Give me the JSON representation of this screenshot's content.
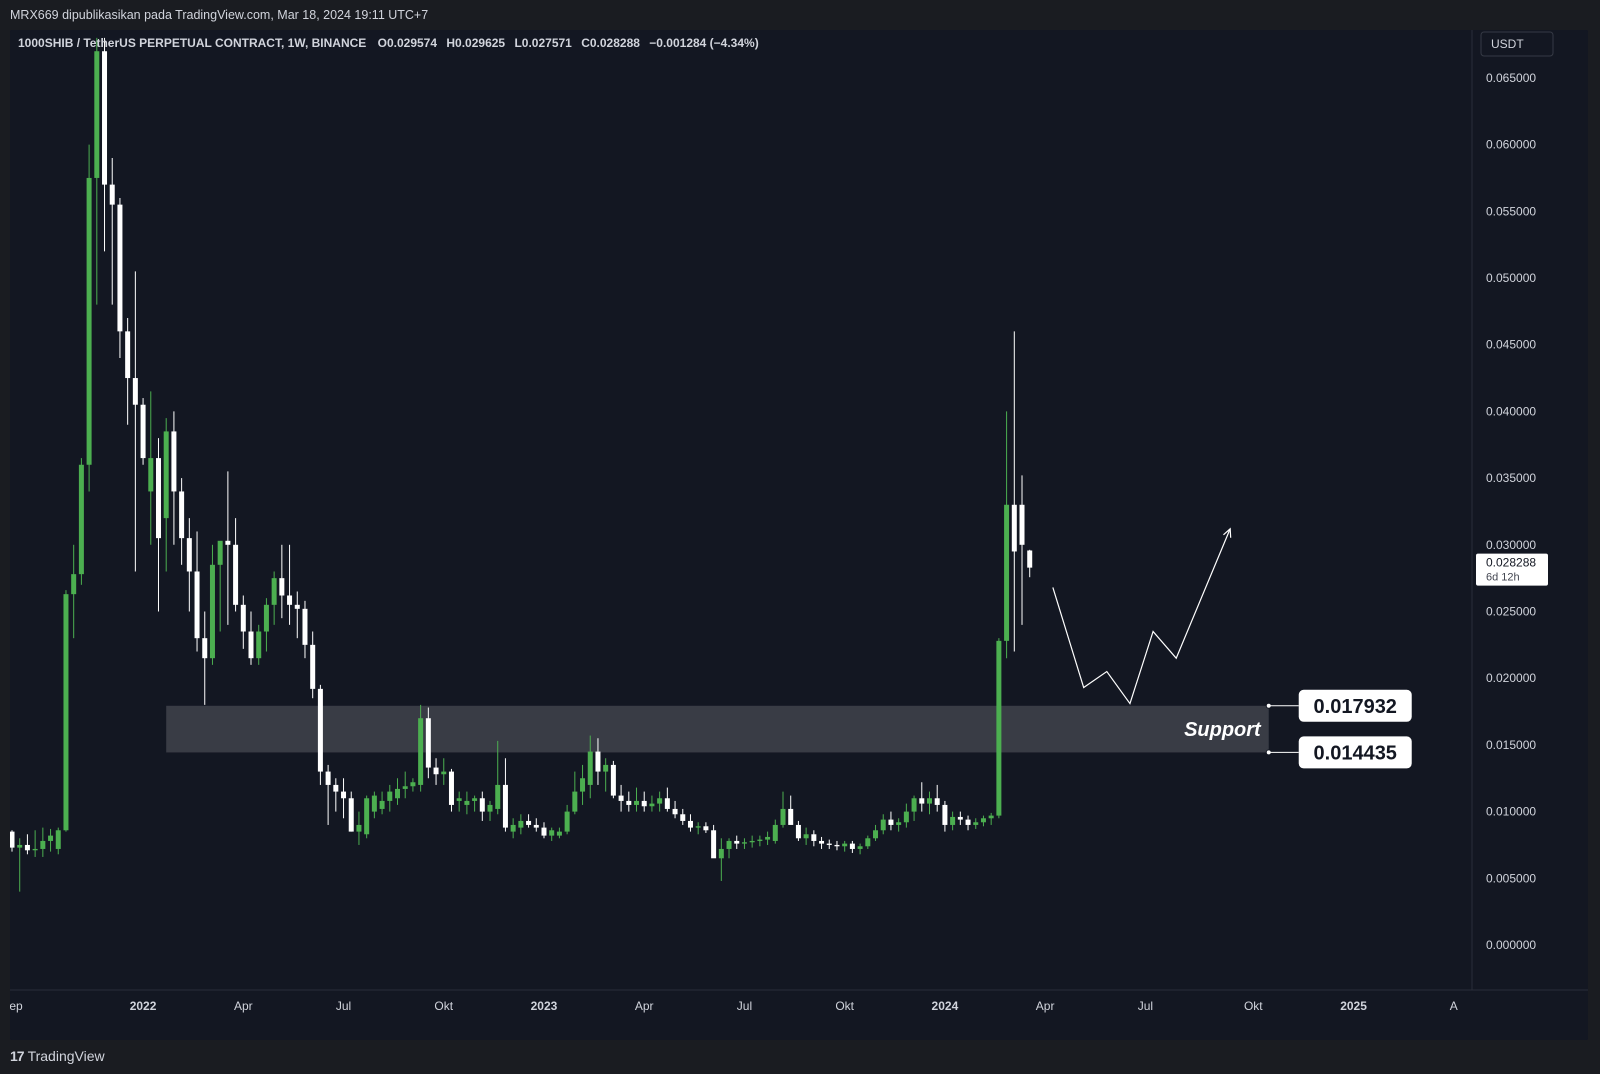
{
  "header": {
    "publish_note": "MRX669 dipublikasikan pada TradingView.com, Mar 18, 2024 19:11 UTC+7"
  },
  "footer": {
    "brand": "TradingView",
    "logo_glyph": "17"
  },
  "colors": {
    "background": "#131722",
    "up_candle": "#4caf50",
    "down_candle": "#ffffff",
    "support_zone": "#3b3e48",
    "text": "#d1d4dc"
  },
  "chart_data": {
    "type": "candlestick",
    "legend": {
      "symbol": "1000SHIB / TetherUS PERPETUAL CONTRACT, 1W, BINANCE",
      "o_label": "O",
      "o_value": "0.029574",
      "h_label": "H",
      "h_value": "0.029625",
      "l_label": "L",
      "l_value": "0.027571",
      "c_label": "C",
      "c_value": "0.028288",
      "change": "−0.001284 (−4.34%)"
    },
    "currency": "USDT",
    "y_ticks": [
      "0.065000",
      "0.060000",
      "0.055000",
      "0.050000",
      "0.045000",
      "0.040000",
      "0.035000",
      "0.030000",
      "0.025000",
      "0.020000",
      "0.015000",
      "0.010000",
      "0.005000",
      "0.000000"
    ],
    "ylim": [
      0.0,
      0.065
    ],
    "x_ticks": [
      {
        "label": "Sep",
        "bold": false,
        "week": 0
      },
      {
        "label": "2022",
        "bold": true,
        "week": 17
      },
      {
        "label": "Apr",
        "bold": false,
        "week": 30
      },
      {
        "label": "Jul",
        "bold": false,
        "week": 43
      },
      {
        "label": "Okt",
        "bold": false,
        "week": 56
      },
      {
        "label": "2023",
        "bold": true,
        "week": 69
      },
      {
        "label": "Apr",
        "bold": false,
        "week": 82
      },
      {
        "label": "Jul",
        "bold": false,
        "week": 95
      },
      {
        "label": "Okt",
        "bold": false,
        "week": 108
      },
      {
        "label": "2024",
        "bold": true,
        "week": 121
      },
      {
        "label": "Apr",
        "bold": false,
        "week": 134
      },
      {
        "label": "Jul",
        "bold": false,
        "week": 147
      },
      {
        "label": "Okt",
        "bold": false,
        "week": 161
      },
      {
        "label": "2025",
        "bold": true,
        "week": 174
      },
      {
        "label": "A",
        "bold": false,
        "week": 187
      }
    ],
    "current_price": {
      "value": "0.028288",
      "countdown": "6d 12h",
      "level": 0.028288
    },
    "support": {
      "label": "Support",
      "upper": 0.017932,
      "lower": 0.014435,
      "upper_label": "0.017932",
      "lower_label": "0.014435",
      "start_week": 20,
      "end_week": 163
    },
    "projection": [
      {
        "week": 135,
        "price": 0.0268
      },
      {
        "week": 139,
        "price": 0.0193
      },
      {
        "week": 142,
        "price": 0.0205
      },
      {
        "week": 145,
        "price": 0.0181
      },
      {
        "week": 148,
        "price": 0.0235
      },
      {
        "week": 151,
        "price": 0.0215
      },
      {
        "week": 158,
        "price": 0.0312
      }
    ],
    "candles": [
      [
        0.0085,
        0.0086,
        0.007,
        0.0073
      ],
      [
        0.0073,
        0.008,
        0.004,
        0.0075
      ],
      [
        0.0075,
        0.0083,
        0.0068,
        0.0071
      ],
      [
        0.0071,
        0.0086,
        0.0066,
        0.0072
      ],
      [
        0.0072,
        0.0088,
        0.0066,
        0.0078
      ],
      [
        0.0078,
        0.0087,
        0.007,
        0.0082
      ],
      [
        0.0072,
        0.0088,
        0.0068,
        0.0086
      ],
      [
        0.0086,
        0.0266,
        0.0085,
        0.0263
      ],
      [
        0.0263,
        0.03,
        0.023,
        0.0278
      ],
      [
        0.0278,
        0.0365,
        0.027,
        0.036
      ],
      [
        0.036,
        0.06,
        0.034,
        0.0575
      ],
      [
        0.0575,
        0.068,
        0.048,
        0.067
      ],
      [
        0.067,
        0.068,
        0.052,
        0.057
      ],
      [
        0.057,
        0.059,
        0.048,
        0.0555
      ],
      [
        0.0555,
        0.056,
        0.044,
        0.046
      ],
      [
        0.046,
        0.047,
        0.039,
        0.0425
      ],
      [
        0.0425,
        0.0505,
        0.028,
        0.0405
      ],
      [
        0.0405,
        0.041,
        0.036,
        0.0365
      ],
      [
        0.034,
        0.0415,
        0.03,
        0.0365
      ],
      [
        0.0365,
        0.038,
        0.025,
        0.0305
      ],
      [
        0.032,
        0.0395,
        0.028,
        0.0385
      ],
      [
        0.0385,
        0.04,
        0.03,
        0.034
      ],
      [
        0.034,
        0.035,
        0.0285,
        0.0305
      ],
      [
        0.0305,
        0.032,
        0.025,
        0.028
      ],
      [
        0.028,
        0.031,
        0.022,
        0.023
      ],
      [
        0.023,
        0.025,
        0.018,
        0.0215
      ],
      [
        0.0215,
        0.03,
        0.021,
        0.0285
      ],
      [
        0.0285,
        0.03,
        0.0235,
        0.0303
      ],
      [
        0.0303,
        0.0355,
        0.024,
        0.03
      ],
      [
        0.03,
        0.032,
        0.025,
        0.0255
      ],
      [
        0.0255,
        0.0262,
        0.0222,
        0.0235
      ],
      [
        0.0235,
        0.025,
        0.021,
        0.0215
      ],
      [
        0.0215,
        0.024,
        0.021,
        0.0235
      ],
      [
        0.0235,
        0.026,
        0.022,
        0.0255
      ],
      [
        0.0255,
        0.028,
        0.024,
        0.0275
      ],
      [
        0.0275,
        0.03,
        0.0245,
        0.0262
      ],
      [
        0.0262,
        0.03,
        0.024,
        0.0255
      ],
      [
        0.0255,
        0.0265,
        0.023,
        0.0252
      ],
      [
        0.0252,
        0.0258,
        0.0215,
        0.0225
      ],
      [
        0.0225,
        0.0235,
        0.0185,
        0.0192
      ],
      [
        0.0192,
        0.0195,
        0.012,
        0.013
      ],
      [
        0.013,
        0.0135,
        0.009,
        0.012
      ],
      [
        0.012,
        0.0125,
        0.01,
        0.0115
      ],
      [
        0.0115,
        0.0125,
        0.0095,
        0.011
      ],
      [
        0.011,
        0.0115,
        0.0085,
        0.0085
      ],
      [
        0.0085,
        0.01,
        0.0075,
        0.009
      ],
      [
        0.0083,
        0.0112,
        0.008,
        0.011
      ],
      [
        0.01,
        0.0115,
        0.0095,
        0.0112
      ],
      [
        0.0102,
        0.0115,
        0.0098,
        0.0108
      ],
      [
        0.0108,
        0.012,
        0.01,
        0.0115
      ],
      [
        0.011,
        0.0125,
        0.0105,
        0.0117
      ],
      [
        0.0117,
        0.013,
        0.011,
        0.0119
      ],
      [
        0.0119,
        0.0125,
        0.0115,
        0.0122
      ],
      [
        0.012,
        0.018,
        0.0115,
        0.017
      ],
      [
        0.017,
        0.0178,
        0.0125,
        0.0133
      ],
      [
        0.0133,
        0.014,
        0.012,
        0.0128
      ],
      [
        0.0128,
        0.014,
        0.012,
        0.013
      ],
      [
        0.013,
        0.0132,
        0.01,
        0.0105
      ],
      [
        0.0108,
        0.0115,
        0.01,
        0.011
      ],
      [
        0.0105,
        0.0115,
        0.0098,
        0.0108
      ],
      [
        0.0108,
        0.0112,
        0.01,
        0.011
      ],
      [
        0.011,
        0.0115,
        0.0093,
        0.01
      ],
      [
        0.01,
        0.0108,
        0.0093,
        0.0105
      ],
      [
        0.0102,
        0.0153,
        0.0098,
        0.012
      ],
      [
        0.012,
        0.014,
        0.0085,
        0.0088
      ],
      [
        0.0085,
        0.0095,
        0.008,
        0.009
      ],
      [
        0.0088,
        0.0098,
        0.0083,
        0.0093
      ],
      [
        0.0093,
        0.0098,
        0.0088,
        0.009
      ],
      [
        0.009,
        0.0095,
        0.0085,
        0.0088
      ],
      [
        0.0088,
        0.0092,
        0.008,
        0.0082
      ],
      [
        0.0082,
        0.0088,
        0.0078,
        0.0086
      ],
      [
        0.0082,
        0.0088,
        0.008,
        0.0085
      ],
      [
        0.0085,
        0.0105,
        0.0083,
        0.01
      ],
      [
        0.01,
        0.013,
        0.0098,
        0.0115
      ],
      [
        0.0115,
        0.0135,
        0.0105,
        0.0125
      ],
      [
        0.012,
        0.0157,
        0.011,
        0.0145
      ],
      [
        0.0145,
        0.0155,
        0.012,
        0.013
      ],
      [
        0.013,
        0.014,
        0.0115,
        0.0135
      ],
      [
        0.0135,
        0.0138,
        0.011,
        0.0112
      ],
      [
        0.0112,
        0.012,
        0.01,
        0.0108
      ],
      [
        0.0108,
        0.0115,
        0.01,
        0.0105
      ],
      [
        0.0105,
        0.0118,
        0.01,
        0.0108
      ],
      [
        0.0108,
        0.0115,
        0.01,
        0.0104
      ],
      [
        0.0104,
        0.0112,
        0.01,
        0.0106
      ],
      [
        0.0106,
        0.0115,
        0.01,
        0.011
      ],
      [
        0.011,
        0.0118,
        0.01,
        0.0102
      ],
      [
        0.0102,
        0.0108,
        0.0095,
        0.0098
      ],
      [
        0.0098,
        0.0102,
        0.009,
        0.0093
      ],
      [
        0.0093,
        0.0098,
        0.0085,
        0.0088
      ],
      [
        0.0088,
        0.0092,
        0.0083,
        0.0089
      ],
      [
        0.0089,
        0.0092,
        0.0084,
        0.0086
      ],
      [
        0.0086,
        0.009,
        0.007,
        0.0065
      ],
      [
        0.0065,
        0.008,
        0.0048,
        0.0072
      ],
      [
        0.0072,
        0.008,
        0.0065,
        0.0078
      ],
      [
        0.0078,
        0.0082,
        0.0072,
        0.0076
      ],
      [
        0.0076,
        0.008,
        0.0072,
        0.0077
      ],
      [
        0.0077,
        0.0082,
        0.0073,
        0.0078
      ],
      [
        0.0078,
        0.0082,
        0.0074,
        0.0079
      ],
      [
        0.0079,
        0.0085,
        0.0075,
        0.0081
      ],
      [
        0.0078,
        0.0094,
        0.0076,
        0.009
      ],
      [
        0.009,
        0.0115,
        0.0088,
        0.0102
      ],
      [
        0.0102,
        0.0112,
        0.0095,
        0.009
      ],
      [
        0.009,
        0.0093,
        0.0078,
        0.008
      ],
      [
        0.008,
        0.0088,
        0.0075,
        0.0083
      ],
      [
        0.0083,
        0.0086,
        0.0074,
        0.0078
      ],
      [
        0.0078,
        0.0081,
        0.0072,
        0.0076
      ],
      [
        0.0076,
        0.0079,
        0.0072,
        0.0075
      ],
      [
        0.0075,
        0.0078,
        0.0071,
        0.0074
      ],
      [
        0.0074,
        0.0078,
        0.007,
        0.0076
      ],
      [
        0.0076,
        0.0078,
        0.0069,
        0.0072
      ],
      [
        0.0072,
        0.0076,
        0.0068,
        0.0074
      ],
      [
        0.0074,
        0.0082,
        0.0072,
        0.008
      ],
      [
        0.008,
        0.009,
        0.0078,
        0.0086
      ],
      [
        0.0086,
        0.0098,
        0.0083,
        0.0094
      ],
      [
        0.0094,
        0.01,
        0.0086,
        0.009
      ],
      [
        0.009,
        0.0095,
        0.0085,
        0.0092
      ],
      [
        0.0092,
        0.0106,
        0.0088,
        0.01
      ],
      [
        0.01,
        0.0112,
        0.0093,
        0.011
      ],
      [
        0.011,
        0.0122,
        0.01,
        0.0106
      ],
      [
        0.0106,
        0.0115,
        0.0098,
        0.011
      ],
      [
        0.011,
        0.012,
        0.01,
        0.0105
      ],
      [
        0.0105,
        0.0108,
        0.0085,
        0.009
      ],
      [
        0.009,
        0.01,
        0.0086,
        0.0096
      ],
      [
        0.0096,
        0.01,
        0.009,
        0.0094
      ],
      [
        0.0094,
        0.0097,
        0.0086,
        0.009
      ],
      [
        0.009,
        0.0095,
        0.0087,
        0.0092
      ],
      [
        0.0092,
        0.0097,
        0.0089,
        0.0095
      ],
      [
        0.0095,
        0.0099,
        0.009,
        0.0097
      ],
      [
        0.0097,
        0.023,
        0.0095,
        0.0228
      ],
      [
        0.0228,
        0.04,
        0.0215,
        0.033
      ],
      [
        0.033,
        0.046,
        0.022,
        0.0295
      ],
      [
        0.033,
        0.0352,
        0.024,
        0.03
      ],
      [
        0.029574,
        0.029625,
        0.027571,
        0.028288
      ]
    ]
  }
}
